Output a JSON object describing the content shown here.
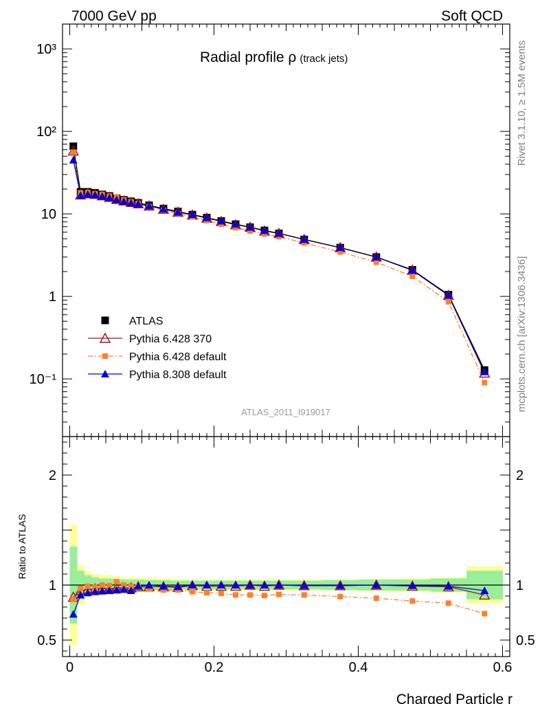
{
  "header": {
    "left": "7000 GeV pp",
    "right": "Soft QCD"
  },
  "side_text": {
    "upper": "Rivet 3.1.10, ≥ 1.5M events",
    "lower": "mcplots.cern.ch [arXiv:1306.3436]"
  },
  "plot_title": {
    "main": "Radial profile ρ",
    "sub": "(track jets)"
  },
  "analysis_label": "ATLAS_2011_I919017",
  "chart_data": {
    "type": "scatter",
    "x": [
      0.005,
      0.015,
      0.025,
      0.035,
      0.045,
      0.055,
      0.065,
      0.075,
      0.085,
      0.095,
      0.11,
      0.13,
      0.15,
      0.17,
      0.19,
      0.21,
      0.23,
      0.25,
      0.27,
      0.29,
      0.325,
      0.375,
      0.425,
      0.475,
      0.525,
      0.575
    ],
    "xlabel": "Charged Particle r",
    "xlim": [
      -0.01,
      0.61
    ],
    "xticks": [
      "0",
      "0.2",
      "0.4",
      "0.6"
    ],
    "main_ylim": [
      0.02,
      2000
    ],
    "main_yscale": "log",
    "main_yticks": [
      "10⁻¹",
      "1",
      "10",
      "10²",
      "10³"
    ],
    "ratio_ylabel": "Ratio to ATLAS",
    "ratio_ylim": [
      0.35,
      2.35
    ],
    "ratio_yticks": [
      "0.5",
      "1",
      "2"
    ],
    "legend_position": "lower-left",
    "series": [
      {
        "name": "ATLAS",
        "marker": "square",
        "color": "#000000",
        "values": [
          66,
          18.5,
          18.5,
          18,
          17.2,
          16.5,
          15.5,
          14.8,
          14.2,
          13.6,
          12.7,
          11.6,
          10.7,
          9.8,
          9.0,
          8.2,
          7.5,
          6.9,
          6.3,
          5.8,
          4.9,
          3.9,
          3.0,
          2.1,
          1.05,
          0.128
        ],
        "band_green": [
          0.35,
          0.13,
          0.09,
          0.07,
          0.06,
          0.06,
          0.055,
          0.05,
          0.05,
          0.05,
          0.045,
          0.045,
          0.04,
          0.04,
          0.04,
          0.04,
          0.04,
          0.04,
          0.04,
          0.04,
          0.04,
          0.045,
          0.05,
          0.05,
          0.06,
          0.13
        ],
        "band_yellow": [
          0.55,
          0.18,
          0.12,
          0.1,
          0.09,
          0.09,
          0.08,
          0.07,
          0.07,
          0.07,
          0.065,
          0.06,
          0.055,
          0.05,
          0.05,
          0.05,
          0.05,
          0.05,
          0.05,
          0.05,
          0.05,
          0.05,
          0.055,
          0.06,
          0.07,
          0.17
        ]
      },
      {
        "name": "Pythia 6.428 370",
        "marker": "triangle-open",
        "color": "#a01020",
        "values": [
          58,
          17.0,
          17.6,
          17.3,
          16.6,
          15.9,
          15.0,
          14.4,
          13.8,
          13.3,
          12.5,
          11.4,
          10.5,
          9.7,
          8.9,
          8.1,
          7.4,
          6.9,
          6.2,
          5.8,
          4.9,
          3.9,
          3.0,
          2.08,
          1.03,
          0.118
        ],
        "ratio": [
          0.89,
          0.95,
          0.96,
          0.965,
          0.97,
          0.965,
          0.975,
          0.975,
          0.975,
          0.985,
          0.985,
          0.985,
          0.98,
          0.995,
          0.99,
          0.99,
          0.99,
          1.0,
          0.99,
          1.0,
          0.995,
          0.995,
          1.0,
          0.99,
          0.985,
          0.91
        ]
      },
      {
        "name": "Pythia 6.428 default",
        "marker": "square-small",
        "color": "#ff7f2a",
        "values": [
          56,
          18.0,
          18.2,
          17.5,
          17.2,
          16.4,
          16.0,
          14.8,
          14.0,
          13.4,
          12.2,
          11.0,
          10.1,
          9.2,
          8.3,
          7.5,
          6.8,
          6.2,
          5.7,
          5.3,
          4.45,
          3.45,
          2.6,
          1.75,
          0.86,
          0.09
        ],
        "ratio": [
          0.87,
          0.97,
          0.99,
          0.98,
          1.0,
          0.995,
          1.03,
          1.0,
          0.99,
          0.985,
          0.965,
          0.955,
          0.955,
          0.94,
          0.93,
          0.925,
          0.91,
          0.91,
          0.905,
          0.915,
          0.91,
          0.895,
          0.88,
          0.855,
          0.835,
          0.74
        ]
      },
      {
        "name": "Pythia 8.308 default",
        "marker": "triangle",
        "color": "#0000e0",
        "values": [
          45,
          16.8,
          17.3,
          17.0,
          16.4,
          15.7,
          14.9,
          14.2,
          13.6,
          13.2,
          12.5,
          11.4,
          10.5,
          9.8,
          9.0,
          8.2,
          7.5,
          6.9,
          6.3,
          5.8,
          4.9,
          3.9,
          3.0,
          2.07,
          1.03,
          0.122
        ],
        "ratio": [
          0.735,
          0.91,
          0.93,
          0.94,
          0.945,
          0.95,
          0.955,
          0.96,
          0.95,
          0.99,
          1.0,
          0.99,
          0.985,
          1.0,
          1.0,
          1.0,
          1.0,
          1.0,
          1.0,
          1.0,
          0.995,
          0.995,
          1.0,
          0.995,
          0.99,
          0.95
        ]
      }
    ]
  }
}
